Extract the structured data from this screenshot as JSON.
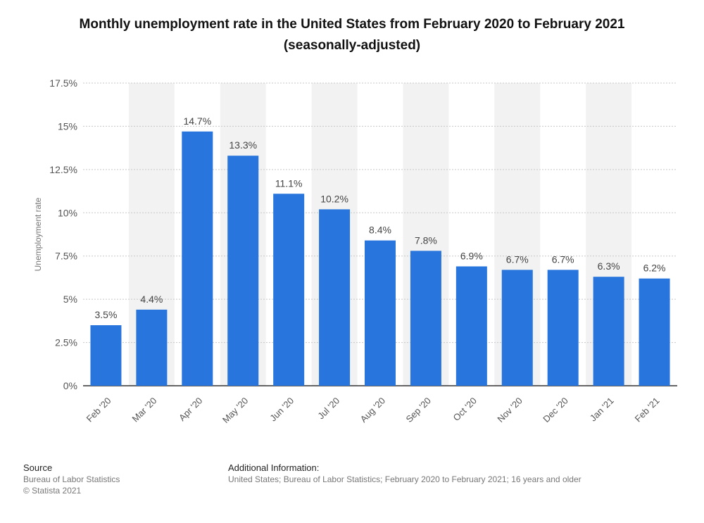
{
  "title_line1": "Monthly unemployment rate in the United States from February 2020 to February 2021",
  "title_line2": "(seasonally-adjusted)",
  "chart_data": {
    "type": "bar",
    "categories": [
      "Feb '20",
      "Mar '20",
      "Apr '20",
      "May '20",
      "Jun '20",
      "Jul '20",
      "Aug '20",
      "Sep '20",
      "Oct '20",
      "Nov '20",
      "Dec '20",
      "Jan '21",
      "Feb '21"
    ],
    "values": [
      3.5,
      4.4,
      14.7,
      13.3,
      11.1,
      10.2,
      8.4,
      7.8,
      6.9,
      6.7,
      6.7,
      6.3,
      6.2
    ],
    "value_labels": [
      "3.5%",
      "4.4%",
      "14.7%",
      "13.3%",
      "11.1%",
      "10.2%",
      "8.4%",
      "7.8%",
      "6.9%",
      "6.7%",
      "6.7%",
      "6.3%",
      "6.2%"
    ],
    "ylabel": "Unemployment rate",
    "xlabel": "",
    "ylim": [
      0,
      17.5
    ],
    "yticks": [
      0,
      2.5,
      5,
      7.5,
      10,
      12.5,
      15,
      17.5
    ],
    "ytick_labels": [
      "0%",
      "2.5%",
      "5%",
      "7.5%",
      "10%",
      "12.5%",
      "15%",
      "17.5%"
    ],
    "grid": true,
    "bar_color": "#2876dd",
    "band_color": "#f2f2f2"
  },
  "footer": {
    "source_heading": "Source",
    "source_lines": [
      "Bureau of Labor Statistics",
      "© Statista 2021"
    ],
    "info_heading": "Additional Information:",
    "info_text": "United States; Bureau of Labor Statistics; February 2020 to February 2021; 16 years and older"
  }
}
